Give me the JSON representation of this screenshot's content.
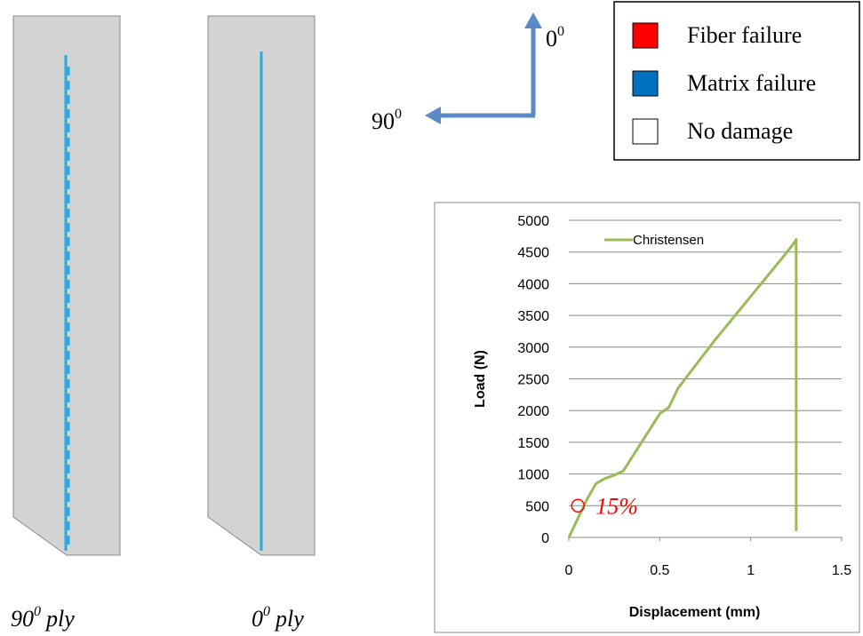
{
  "panels": [
    {
      "caption": {
        "base": "90",
        "sup": "0",
        "rest": "ply"
      }
    },
    {
      "caption": {
        "base": "0",
        "sup": "0",
        "rest": "ply"
      }
    }
  ],
  "orientation": {
    "vertical": {
      "base": "0",
      "sup": "0"
    },
    "horizontal": {
      "base": "90",
      "sup": "0"
    }
  },
  "damage_legend": [
    {
      "label": "Fiber failure",
      "color": "#ff0000"
    },
    {
      "label": "Matrix failure",
      "color": "#0070c0"
    },
    {
      "label": "No damage",
      "color": "#ffffff"
    }
  ],
  "chart_data": {
    "type": "line",
    "x_label": "Displacement (mm)",
    "y_label": "Load (N)",
    "x": [
      0,
      0.05,
      0.1,
      0.15,
      0.2,
      0.25,
      0.3,
      0.4,
      0.5,
      0.55,
      0.6,
      0.8,
      1.0,
      1.2,
      1.24,
      1.25,
      1.25
    ],
    "series": [
      {
        "name": "Christensen",
        "color": "#9bbb59",
        "values": [
          0,
          300,
          600,
          850,
          930,
          980,
          1050,
          1500,
          1950,
          2050,
          2350,
          3100,
          3800,
          4500,
          4650,
          4700,
          100
        ]
      }
    ],
    "xlim": [
      0,
      1.5
    ],
    "xticks": [
      0,
      0.5,
      1,
      1.5
    ],
    "ylim": [
      0,
      5000
    ],
    "yticks": [
      0,
      500,
      1000,
      1500,
      2000,
      2500,
      3000,
      3500,
      4000,
      4500,
      5000
    ],
    "grid": true,
    "legend": "top-left",
    "annotations": [
      {
        "x": 0.05,
        "y": 500,
        "label": "15%",
        "color": "#ff0000"
      }
    ]
  }
}
